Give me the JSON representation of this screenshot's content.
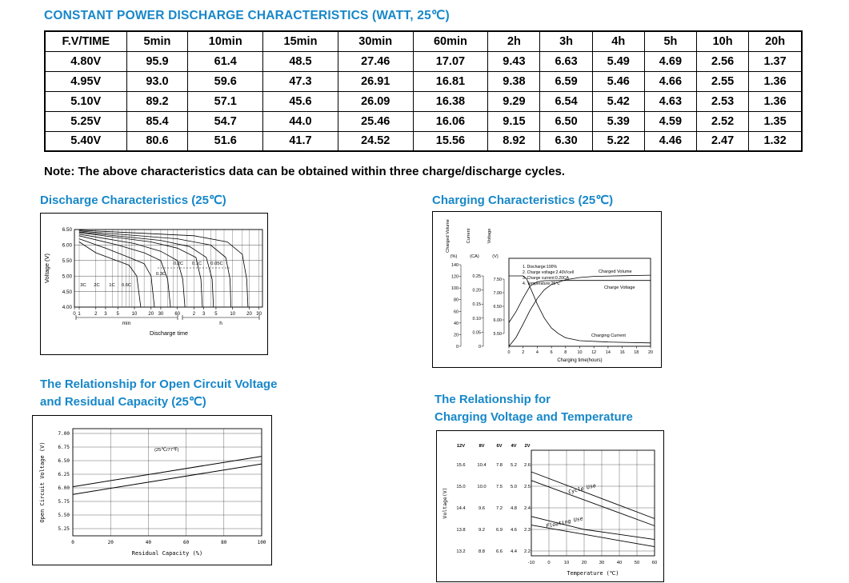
{
  "page": {
    "title": "CONSTANT POWER DISCHARGE CHARACTERISTICS (WATT, 25℃)",
    "note": "Note: The above characteristics data can be obtained within three charge/discharge cycles.",
    "accent_color": "#1787c8"
  },
  "table": {
    "columns": [
      "F.V/TIME",
      "5min",
      "10min",
      "15min",
      "30min",
      "60min",
      "2h",
      "3h",
      "4h",
      "5h",
      "10h",
      "20h"
    ],
    "rows": [
      [
        "4.80V",
        "95.9",
        "61.4",
        "48.5",
        "27.46",
        "17.07",
        "9.43",
        "6.63",
        "5.49",
        "4.69",
        "2.56",
        "1.37"
      ],
      [
        "4.95V",
        "93.0",
        "59.6",
        "47.3",
        "26.91",
        "16.81",
        "9.38",
        "6.59",
        "5.46",
        "4.66",
        "2.55",
        "1.36"
      ],
      [
        "5.10V",
        "89.2",
        "57.1",
        "45.6",
        "26.09",
        "16.38",
        "9.29",
        "6.54",
        "5.42",
        "4.63",
        "2.53",
        "1.36"
      ],
      [
        "5.25V",
        "85.4",
        "54.7",
        "44.0",
        "25.46",
        "16.06",
        "9.15",
        "6.50",
        "5.39",
        "4.59",
        "2.52",
        "1.35"
      ],
      [
        "5.40V",
        "80.6",
        "51.6",
        "41.7",
        "24.52",
        "15.56",
        "8.92",
        "6.30",
        "5.22",
        "4.46",
        "2.47",
        "1.32"
      ]
    ]
  },
  "chart_data": [
    {
      "id": "discharge",
      "type": "line",
      "title": "Discharge Characteristics (25℃)",
      "ylabel": "Voltage (V)",
      "yticks": [
        "6.50",
        "6.00",
        "5.50",
        "5.00",
        "4.50",
        "4.00"
      ],
      "xlabel": "Discharge time",
      "x_axis_groups": [
        {
          "unit": "min",
          "ticks": [
            "0",
            "1",
            "2",
            "3",
            "5",
            "10",
            "20",
            "30",
            "60"
          ]
        },
        {
          "unit": "h",
          "ticks": [
            "2",
            "3",
            "5",
            "10",
            "20",
            "30"
          ]
        }
      ],
      "x_scale": "log-minutes",
      "ylim": [
        4.0,
        6.5
      ],
      "series": [
        {
          "name": "3C",
          "points": [
            [
              1,
              6.1
            ],
            [
              2,
              5.75
            ],
            [
              4,
              5.55
            ],
            [
              8,
              5.35
            ],
            [
              11,
              5.0
            ],
            [
              13,
              4.0
            ]
          ]
        },
        {
          "name": "2C",
          "points": [
            [
              1,
              6.2
            ],
            [
              3,
              5.9
            ],
            [
              8,
              5.6
            ],
            [
              15,
              5.4
            ],
            [
              20,
              5.0
            ],
            [
              23,
              4.0
            ]
          ]
        },
        {
          "name": "1C",
          "points": [
            [
              1,
              6.3
            ],
            [
              5,
              6.0
            ],
            [
              15,
              5.75
            ],
            [
              30,
              5.5
            ],
            [
              40,
              4.9
            ],
            [
              45,
              4.0
            ]
          ]
        },
        {
          "name": "0.6C",
          "points": [
            [
              1,
              6.35
            ],
            [
              10,
              6.05
            ],
            [
              30,
              5.8
            ],
            [
              60,
              5.5
            ],
            [
              75,
              4.9
            ],
            [
              82,
              4.0
            ]
          ]
        },
        {
          "name": "0.3C",
          "points": [
            [
              1,
              6.4
            ],
            [
              20,
              6.1
            ],
            [
              60,
              5.9
            ],
            [
              130,
              5.6
            ],
            [
              160,
              4.9
            ],
            [
              170,
              4.0
            ]
          ]
        },
        {
          "name": "0.2C",
          "points": [
            [
              1,
              6.42
            ],
            [
              30,
              6.15
            ],
            [
              100,
              5.95
            ],
            [
              200,
              5.6
            ],
            [
              255,
              4.9
            ],
            [
              270,
              4.0
            ]
          ]
        },
        {
          "name": "0.1C",
          "points": [
            [
              1,
              6.45
            ],
            [
              60,
              6.2
            ],
            [
              240,
              6.0
            ],
            [
              450,
              5.6
            ],
            [
              540,
              4.9
            ],
            [
              560,
              4.0
            ]
          ]
        },
        {
          "name": "0.05C",
          "points": [
            [
              1,
              6.48
            ],
            [
              120,
              6.3
            ],
            [
              480,
              6.1
            ],
            [
              900,
              5.7
            ],
            [
              1080,
              4.9
            ],
            [
              1140,
              4.0
            ]
          ]
        }
      ]
    },
    {
      "id": "charging",
      "type": "line",
      "title": "Charging Characteristics (25℃)",
      "left_axes": [
        {
          "label": "Charged Volume",
          "unit": "(%)",
          "ticks": [
            "140",
            "120",
            "100",
            "80",
            "60",
            "40",
            "20",
            "0"
          ]
        },
        {
          "label": "Current",
          "unit": "(CA)",
          "ticks": [
            "0.25",
            "0.20",
            "0.15",
            "0.10",
            "0.05",
            "0"
          ]
        },
        {
          "label": "Voltage",
          "unit": "(V)",
          "ticks": [
            "7.50",
            "7.00",
            "6.50",
            "6.00",
            "5.50"
          ]
        }
      ],
      "conditions": [
        "1. Discharge:100%",
        "2. Charge voltage:2.40V/cell",
        "3. Charge current:0.20CA",
        "4. Temperature:25℃"
      ],
      "xticks": [
        "0",
        "2",
        "4",
        "6",
        "8",
        "10",
        "12",
        "14",
        "16",
        "18",
        "20"
      ],
      "xlabel": "Charging time(hours)",
      "series": [
        {
          "name": "Charged Volume",
          "unit": "%",
          "points": [
            [
              0,
              0
            ],
            [
              1,
              15
            ],
            [
              2,
              38
            ],
            [
              3,
              62
            ],
            [
              4,
              82
            ],
            [
              5,
              97
            ],
            [
              6,
              106
            ],
            [
              8,
              114
            ],
            [
              10,
              118
            ],
            [
              12,
              120
            ],
            [
              16,
              121
            ],
            [
              20,
              122
            ]
          ]
        },
        {
          "name": "Charge Voltage",
          "unit": "V",
          "points": [
            [
              0,
              5.9
            ],
            [
              1,
              6.3
            ],
            [
              2,
              6.8
            ],
            [
              3,
              7.25
            ],
            [
              4,
              7.4
            ],
            [
              5,
              7.44
            ],
            [
              8,
              7.45
            ],
            [
              12,
              7.45
            ],
            [
              20,
              7.45
            ]
          ]
        },
        {
          "name": "Charging Current",
          "unit": "CA",
          "points": [
            [
              0,
              0.25
            ],
            [
              1,
              0.25
            ],
            [
              2,
              0.25
            ],
            [
              2.5,
              0.24
            ],
            [
              3,
              0.21
            ],
            [
              4,
              0.15
            ],
            [
              5,
              0.1
            ],
            [
              6,
              0.065
            ],
            [
              7,
              0.045
            ],
            [
              8,
              0.03
            ],
            [
              10,
              0.02
            ],
            [
              14,
              0.015
            ],
            [
              20,
              0.012
            ]
          ]
        }
      ]
    },
    {
      "id": "ocv",
      "type": "line",
      "title": "The Relationship for Open Circuit Voltage and Residual Capacity (25℃)",
      "title_lines": [
        "The Relationship for Open Circuit Voltage",
        "and Residual Capacity (25℃)"
      ],
      "ylabel": "Open Circuit Voltage (V)",
      "yticks": [
        "7.00",
        "6.75",
        "6.50",
        "6.25",
        "6.00",
        "5.75",
        "5.50",
        "5.25"
      ],
      "xticks": [
        "0",
        "20",
        "40",
        "60",
        "80",
        "100"
      ],
      "xlabel": "Residual Capacity (%)",
      "annotation": "(25℃/77℉)",
      "series": [
        {
          "name": "upper",
          "points": [
            [
              0,
              6.02
            ],
            [
              50,
              6.3
            ],
            [
              100,
              6.58
            ]
          ]
        },
        {
          "name": "lower",
          "points": [
            [
              0,
              5.88
            ],
            [
              50,
              6.16
            ],
            [
              100,
              6.44
            ]
          ]
        }
      ]
    },
    {
      "id": "charge-temp",
      "type": "line",
      "title": "The Relationship for Charging Voltage and Temperature",
      "title_lines": [
        "The Relationship for",
        "Charging Voltage and Temperature"
      ],
      "ylabel": "Voltage(V)",
      "scale_headers": [
        "12V",
        "8V",
        "6V",
        "4V",
        "2V"
      ],
      "scale_rows": [
        [
          "15.6",
          "10.4",
          "7.8",
          "5.2",
          "2.6"
        ],
        [
          "15.0",
          "10.0",
          "7.5",
          "5.0",
          "2.5"
        ],
        [
          "14.4",
          "9.6",
          "7.2",
          "4.8",
          "2.4"
        ],
        [
          "13.8",
          "9.2",
          "6.9",
          "4.6",
          "2.3"
        ],
        [
          "13.2",
          "8.8",
          "6.6",
          "4.4",
          "2.2"
        ]
      ],
      "xticks": [
        "-10",
        "0",
        "10",
        "20",
        "30",
        "40",
        "50",
        "60"
      ],
      "xlabel": "Temperature (℃)",
      "bands": [
        {
          "name": "Cycle Use",
          "upper": [
            [
              -10,
              7.7
            ],
            [
              60,
              7.05
            ]
          ],
          "lower": [
            [
              -10,
              7.58
            ],
            [
              60,
              6.95
            ]
          ]
        },
        {
          "name": "Floating Use",
          "upper": [
            [
              -10,
              7.08
            ],
            [
              20,
              6.9
            ],
            [
              60,
              6.76
            ]
          ],
          "lower": [
            [
              -10,
              6.96
            ],
            [
              60,
              6.66
            ]
          ]
        }
      ]
    }
  ]
}
